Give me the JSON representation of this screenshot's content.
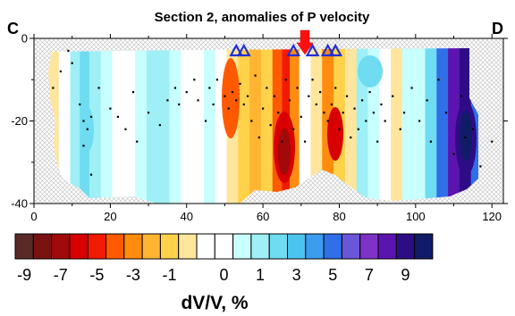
{
  "chart_data": {
    "type": "heatmap",
    "title": "Section 2, anomalies of P velocity",
    "profile_start_label": "C",
    "profile_end_label": "D",
    "xlabel": "",
    "ylabel": "",
    "x_range": [
      0,
      123
    ],
    "y_range": [
      -40,
      0
    ],
    "x_ticks": [
      "0",
      "20",
      "40",
      "60",
      "80",
      "100",
      "120"
    ],
    "x_tick_values": [
      0,
      20,
      40,
      60,
      80,
      100,
      120
    ],
    "y_ticks": [
      "0",
      "-20",
      "-40"
    ],
    "y_tick_values": [
      0,
      -20,
      -40
    ],
    "anomaly_columns": [
      {
        "x": 2,
        "dvv": -1.0
      },
      {
        "x": 5,
        "dvv": -1.5
      },
      {
        "x": 8,
        "dvv": -1.0
      },
      {
        "x": 11,
        "dvv": 1.5
      },
      {
        "x": 13,
        "dvv": 2.5
      },
      {
        "x": 16,
        "dvv": 1.5
      },
      {
        "x": 19,
        "dvv": 0.5
      },
      {
        "x": 22,
        "dvv": -0.5
      },
      {
        "x": 25,
        "dvv": -1.0
      },
      {
        "x": 28,
        "dvv": 1.0
      },
      {
        "x": 31,
        "dvv": 1.5
      },
      {
        "x": 34,
        "dvv": 1.5
      },
      {
        "x": 37,
        "dvv": 0.5
      },
      {
        "x": 40,
        "dvv": -0.5
      },
      {
        "x": 43,
        "dvv": -1.0
      },
      {
        "x": 46,
        "dvv": 0.5
      },
      {
        "x": 49,
        "dvv": 0.0
      },
      {
        "x": 52,
        "dvv": -1.5
      },
      {
        "x": 55,
        "dvv": -3.0
      },
      {
        "x": 58,
        "dvv": -4.0
      },
      {
        "x": 61,
        "dvv": -3.0
      },
      {
        "x": 64,
        "dvv": -5.5
      },
      {
        "x": 66,
        "dvv": -7.0
      },
      {
        "x": 68,
        "dvv": -5.0
      },
      {
        "x": 71,
        "dvv": -1.0
      },
      {
        "x": 74,
        "dvv": -2.0
      },
      {
        "x": 77,
        "dvv": -5.0
      },
      {
        "x": 80,
        "dvv": -3.0
      },
      {
        "x": 83,
        "dvv": -1.5
      },
      {
        "x": 86,
        "dvv": 1.5
      },
      {
        "x": 89,
        "dvv": 1.0
      },
      {
        "x": 92,
        "dvv": -0.5
      },
      {
        "x": 95,
        "dvv": -1.5
      },
      {
        "x": 98,
        "dvv": 0.5
      },
      {
        "x": 101,
        "dvv": 1.0
      },
      {
        "x": 104,
        "dvv": 3.0
      },
      {
        "x": 107,
        "dvv": 5.5
      },
      {
        "x": 110,
        "dvv": 8.5
      },
      {
        "x": 113,
        "dvv": 9.5
      },
      {
        "x": 116,
        "dvv": 6.0
      },
      {
        "x": 118,
        "dvv": 2.0
      }
    ],
    "stations": [
      53,
      55,
      68,
      73,
      77,
      79
    ],
    "volcano_marker": 71,
    "events": [
      [
        5,
        -12
      ],
      [
        7,
        -8
      ],
      [
        9,
        -3
      ],
      [
        10,
        -6
      ],
      [
        12,
        -16
      ],
      [
        13,
        -20
      ],
      [
        14,
        -22
      ],
      [
        15,
        -19
      ],
      [
        13,
        -26
      ],
      [
        15,
        -33
      ],
      [
        17,
        -12
      ],
      [
        20,
        -17
      ],
      [
        22,
        -19
      ],
      [
        24,
        -22
      ],
      [
        26,
        -13
      ],
      [
        27,
        -25
      ],
      [
        30,
        -18
      ],
      [
        33,
        -21
      ],
      [
        35,
        -15
      ],
      [
        37,
        -12
      ],
      [
        38,
        -16
      ],
      [
        40,
        -13
      ],
      [
        42,
        -10
      ],
      [
        43,
        -15
      ],
      [
        45,
        -20
      ],
      [
        46,
        -12
      ],
      [
        47,
        -16
      ],
      [
        48,
        -10
      ],
      [
        50,
        -14
      ],
      [
        51,
        -17
      ],
      [
        52,
        -13
      ],
      [
        53,
        -15
      ],
      [
        54,
        -11
      ],
      [
        55,
        -16
      ],
      [
        56,
        -14
      ],
      [
        57,
        -20
      ],
      [
        58,
        -9
      ],
      [
        59,
        -24
      ],
      [
        60,
        -17
      ],
      [
        61,
        -12
      ],
      [
        62,
        -21
      ],
      [
        63,
        -14
      ],
      [
        64,
        -18
      ],
      [
        65,
        -25
      ],
      [
        66,
        -10
      ],
      [
        67,
        -15
      ],
      [
        68,
        -22
      ],
      [
        69,
        -12
      ],
      [
        70,
        -19
      ],
      [
        71,
        -25
      ],
      [
        72,
        -14
      ],
      [
        73,
        -10
      ],
      [
        74,
        -16
      ],
      [
        75,
        -13
      ],
      [
        76,
        -18
      ],
      [
        77,
        -20
      ],
      [
        78,
        -16
      ],
      [
        79,
        -12
      ],
      [
        80,
        -22
      ],
      [
        81,
        -18
      ],
      [
        82,
        -14
      ],
      [
        83,
        -24
      ],
      [
        84,
        -17
      ],
      [
        85,
        -22
      ],
      [
        86,
        -15
      ],
      [
        87,
        -20
      ],
      [
        88,
        -13
      ],
      [
        89,
        -18
      ],
      [
        90,
        -25
      ],
      [
        91,
        -16
      ],
      [
        92,
        -20
      ],
      [
        94,
        -14
      ],
      [
        96,
        -22
      ],
      [
        97,
        -18
      ],
      [
        99,
        -12
      ],
      [
        101,
        -20
      ],
      [
        103,
        -15
      ],
      [
        104,
        -25
      ],
      [
        106,
        -10
      ],
      [
        108,
        -18
      ],
      [
        110,
        -28
      ],
      [
        112,
        -14
      ],
      [
        113,
        -24
      ],
      [
        115,
        -22
      ],
      [
        117,
        -31
      ],
      [
        120,
        -25
      ]
    ],
    "colorbar": {
      "label": "dV/V, %",
      "tick_labels": [
        "-9",
        "-7",
        "-5",
        "-3",
        "-1",
        "0",
        "1",
        "3",
        "5",
        "7",
        "9"
      ],
      "colors": [
        "#5a2b26",
        "#7b1212",
        "#a00a0a",
        "#d80000",
        "#f21a00",
        "#ff5a00",
        "#ff8c0e",
        "#ffb432",
        "#ffd24a",
        "#ffe69c",
        "#ffffff",
        "#ffffff",
        "#c8ffff",
        "#9ef0f6",
        "#6fdcf2",
        "#4cc4f0",
        "#3c9cee",
        "#2f6fe8",
        "#6b56d8",
        "#7e32c6",
        "#5c14b0",
        "#2e0c86",
        "#101c68"
      ]
    }
  }
}
